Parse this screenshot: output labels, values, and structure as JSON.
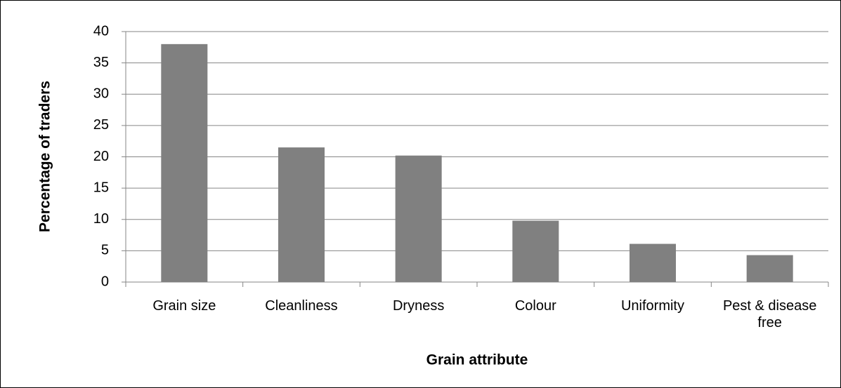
{
  "chart_data": {
    "type": "bar",
    "xlabel": "Grain attribute",
    "ylabel": "Percentage of traders",
    "categories": [
      "Grain size",
      "Cleanliness",
      "Dryness",
      "Colour",
      "Uniformity",
      "Pest & disease free"
    ],
    "values": [
      38,
      21.5,
      20.2,
      9.8,
      6.1,
      4.3
    ],
    "color": "#808080",
    "ylim": [
      0,
      40
    ],
    "yticks": [
      0,
      5,
      10,
      15,
      20,
      25,
      30,
      35,
      40
    ],
    "grid": true
  }
}
